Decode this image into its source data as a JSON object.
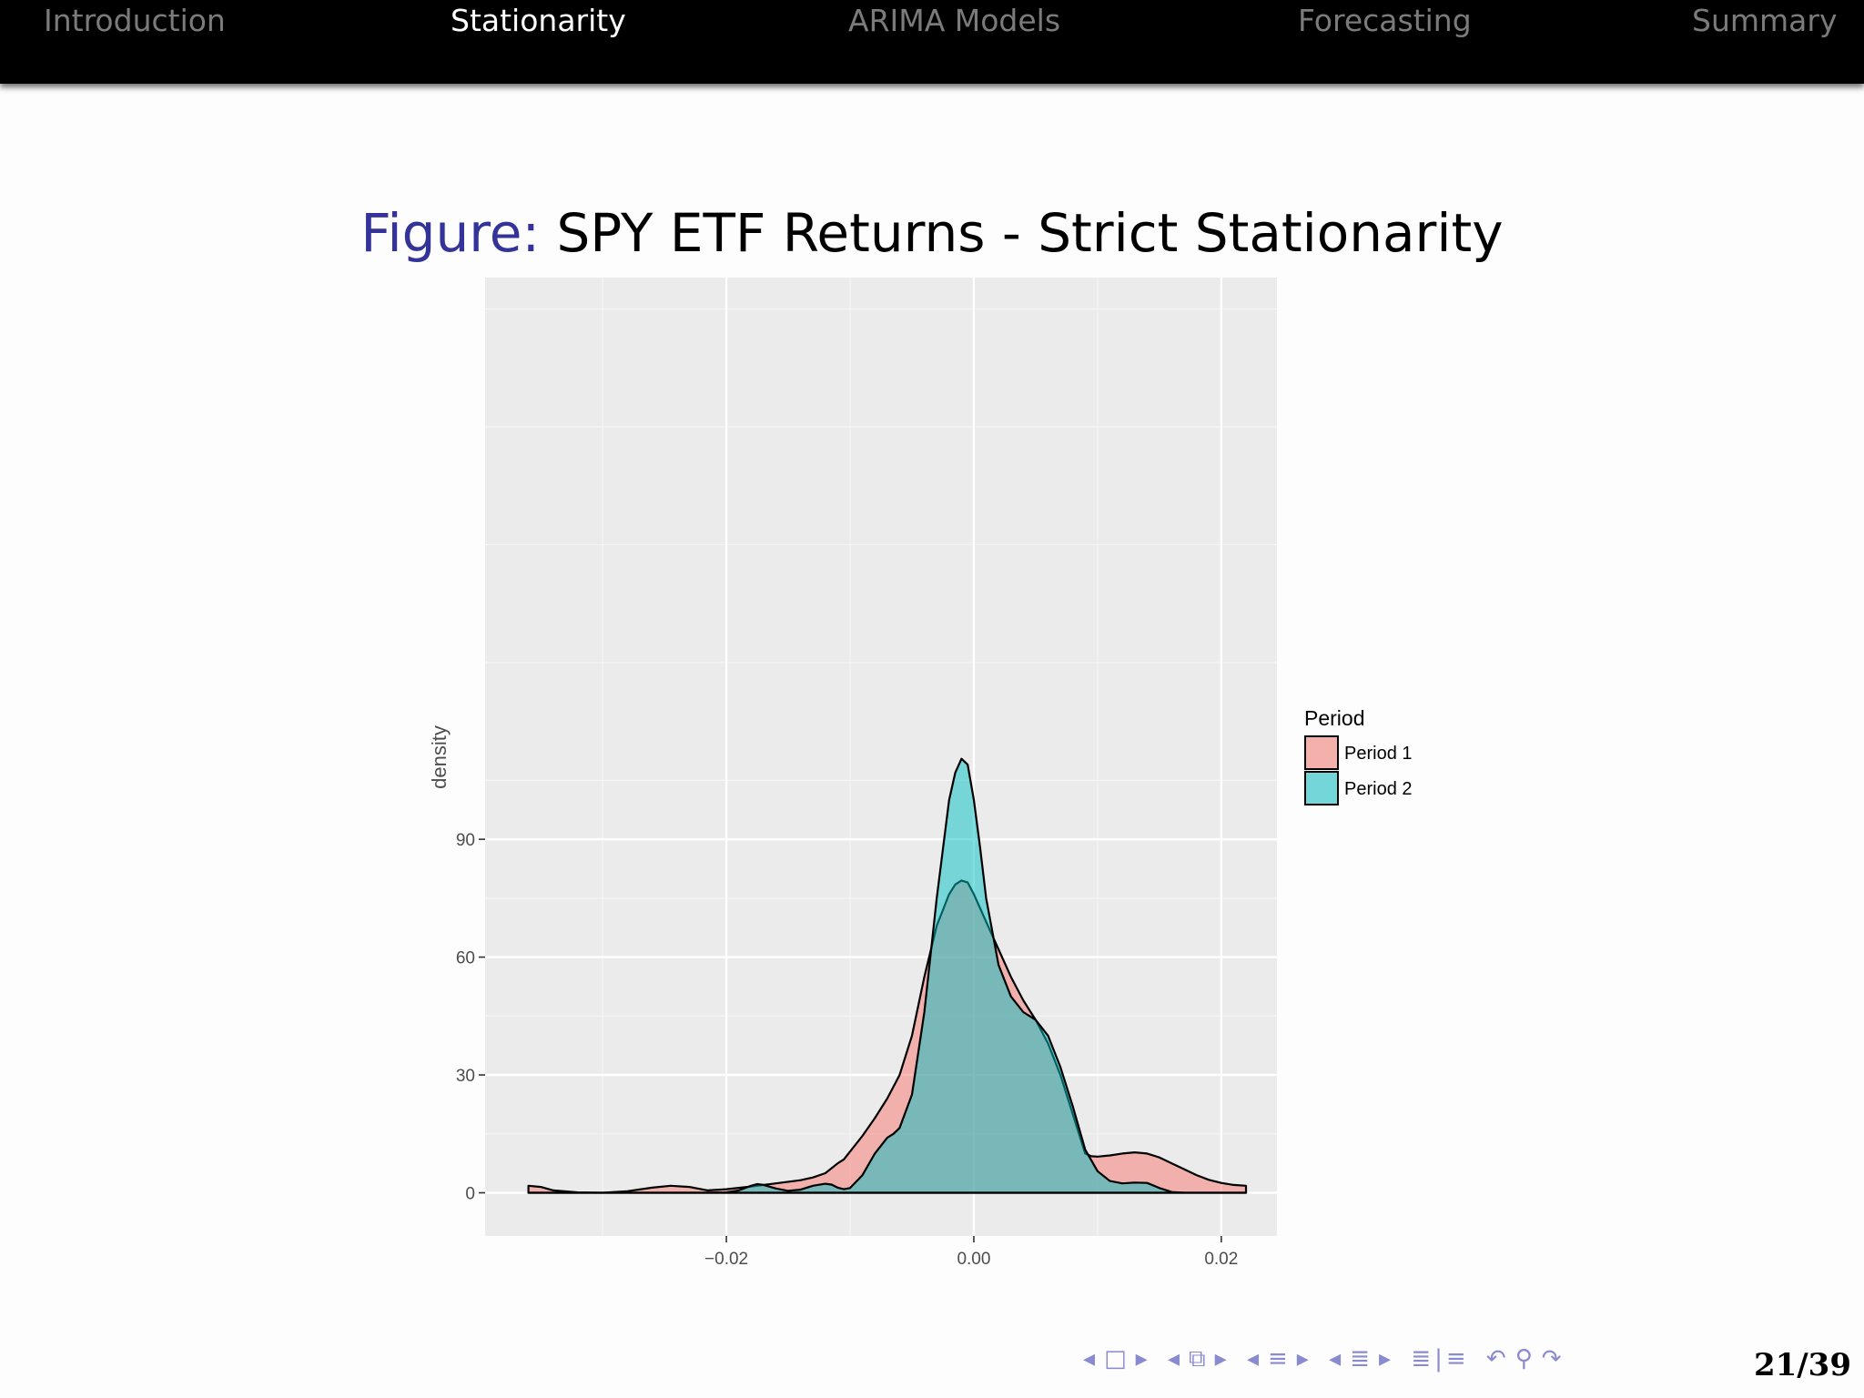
{
  "nav": {
    "items": [
      {
        "label": "Introduction",
        "active": false
      },
      {
        "label": "Stationarity",
        "active": true
      },
      {
        "label": "ARIMA Models",
        "active": false
      },
      {
        "label": "Forecasting",
        "active": false
      },
      {
        "label": "Summary",
        "active": false
      }
    ]
  },
  "caption": {
    "label": "Figure:",
    "text": "SPY ETF Returns - Strict Stationarity"
  },
  "footer": {
    "nav_icons": [
      "arrow-left-icon",
      "frame-icon",
      "arrow-right-icon",
      "arrow-left-icon",
      "section-icon",
      "arrow-right-icon",
      "arrow-left-icon",
      "subsection-icon",
      "arrow-right-icon",
      "arrow-left-icon",
      "subsection-icon",
      "arrow-right-icon",
      "outline-icon",
      "undo-icon",
      "search-icon",
      "redo-icon"
    ],
    "page": "21/39"
  },
  "chart_data": {
    "type": "area",
    "ylabel": "density",
    "xlabel": "",
    "xlim": [
      -0.0395,
      0.0245
    ],
    "ylim": [
      -11,
      233
    ],
    "x_ticks": [
      -0.02,
      0.0,
      0.02
    ],
    "x_tick_labels": [
      "−0.02",
      "0.00",
      "0.02"
    ],
    "y_ticks": [
      0,
      30,
      60,
      90
    ],
    "y_tick_labels": [
      "0",
      "30",
      "60",
      "90"
    ],
    "grid": true,
    "legend": {
      "title": "Period",
      "position": "right"
    },
    "series": [
      {
        "name": "Period 1",
        "color": "#f8766d",
        "x": [
          -0.036,
          -0.035,
          -0.034,
          -0.032,
          -0.03,
          -0.028,
          -0.026,
          -0.0245,
          -0.023,
          -0.0215,
          -0.02,
          -0.018,
          -0.016,
          -0.014,
          -0.013,
          -0.012,
          -0.011,
          -0.0105,
          -0.01,
          -0.009,
          -0.008,
          -0.007,
          -0.006,
          -0.005,
          -0.004,
          -0.003,
          -0.002,
          -0.0015,
          -0.001,
          -0.0005,
          0.0,
          0.001,
          0.002,
          0.003,
          0.004,
          0.005,
          0.006,
          0.007,
          0.008,
          0.009,
          0.0095,
          0.01,
          0.011,
          0.012,
          0.013,
          0.014,
          0.015,
          0.016,
          0.017,
          0.018,
          0.019,
          0.02,
          0.021,
          0.022
        ],
        "y": [
          1.8,
          1.5,
          0.6,
          0.1,
          0.0,
          0.4,
          1.3,
          1.8,
          1.5,
          0.6,
          0.9,
          1.6,
          2.4,
          3.2,
          3.9,
          5.0,
          7.5,
          8.5,
          10.5,
          14.5,
          19.0,
          24.0,
          30.0,
          40.0,
          55.0,
          68.0,
          76.0,
          78.5,
          79.5,
          79.0,
          76.0,
          69.0,
          62.0,
          55.0,
          49.0,
          44.0,
          38.0,
          30.0,
          20.0,
          10.0,
          9.3,
          9.2,
          9.5,
          10.0,
          10.3,
          10.0,
          9.0,
          7.5,
          6.0,
          4.5,
          3.3,
          2.5,
          2.0,
          1.8
        ]
      },
      {
        "name": "Period 2",
        "color": "#00bfc4",
        "x": [
          -0.036,
          -0.034,
          -0.032,
          -0.03,
          -0.028,
          -0.026,
          -0.024,
          -0.022,
          -0.02,
          -0.019,
          -0.018,
          -0.0175,
          -0.017,
          -0.016,
          -0.015,
          -0.014,
          -0.013,
          -0.012,
          -0.0115,
          -0.011,
          -0.0105,
          -0.01,
          -0.009,
          -0.008,
          -0.007,
          -0.0065,
          -0.006,
          -0.005,
          -0.004,
          -0.003,
          -0.002,
          -0.0015,
          -0.001,
          -0.0005,
          0.0,
          0.0005,
          0.001,
          0.002,
          0.003,
          0.004,
          0.005,
          0.006,
          0.007,
          0.008,
          0.009,
          0.01,
          0.011,
          0.012,
          0.013,
          0.014,
          0.015,
          0.016,
          0.017,
          0.018,
          0.02,
          0.022
        ],
        "y": [
          0.0,
          0.0,
          0.0,
          0.0,
          0.0,
          0.0,
          0.0,
          0.0,
          0.1,
          0.6,
          1.8,
          2.2,
          2.0,
          1.1,
          0.5,
          0.8,
          1.8,
          2.3,
          2.1,
          1.3,
          0.9,
          1.2,
          4.5,
          10.0,
          14.0,
          15.0,
          16.5,
          25.0,
          46.0,
          75.0,
          100.0,
          107.0,
          110.5,
          109.0,
          100.0,
          88.0,
          75.0,
          58.0,
          50.0,
          46.0,
          44.0,
          40.0,
          32.0,
          22.0,
          11.0,
          5.5,
          3.0,
          2.4,
          2.6,
          2.5,
          1.2,
          0.2,
          0.0,
          0.0,
          0.0,
          0.0
        ]
      }
    ]
  }
}
